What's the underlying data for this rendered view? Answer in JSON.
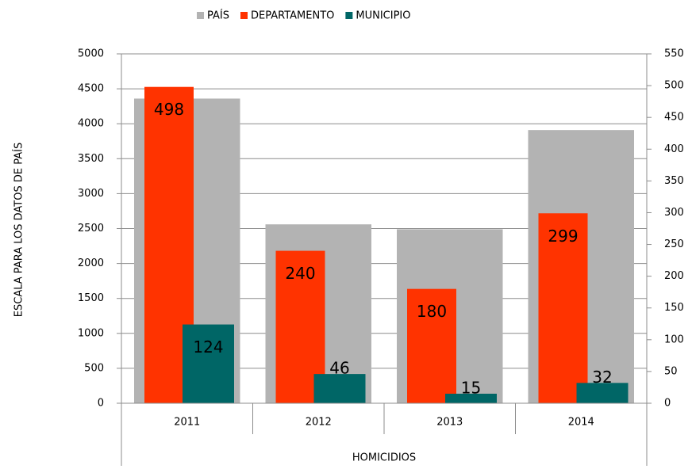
{
  "chart_data": {
    "type": "bar",
    "x_label": "HOMICIDIOS",
    "y_label": "ESCALA PARA LOS DATOS DE PAÍS",
    "categories": [
      "2011",
      "2012",
      "2013",
      "2014"
    ],
    "series": [
      {
        "name": "PAÍS",
        "color": "#b3b3b3",
        "values": [
          4360,
          2560,
          2490,
          3910
        ]
      },
      {
        "name": "DEPARTAMENTO",
        "color": "#ff3300",
        "values": [
          498,
          240,
          180,
          299
        ],
        "axis": "y2",
        "labels": true
      },
      {
        "name": "MUNICIPIO",
        "color": "#006666",
        "values": [
          124,
          46,
          15,
          32
        ],
        "axis": "y2",
        "labels": true
      }
    ],
    "ylim": [
      0,
      5000
    ],
    "yticks": [
      0,
      500,
      1000,
      1500,
      2000,
      2500,
      3000,
      3500,
      4000,
      4500,
      5000
    ],
    "y2lim": [
      0,
      550
    ],
    "y2ticks": [
      0,
      50,
      100,
      150,
      200,
      250,
      300,
      350,
      400,
      450,
      500,
      550
    ],
    "grid": true,
    "legend": "top"
  }
}
